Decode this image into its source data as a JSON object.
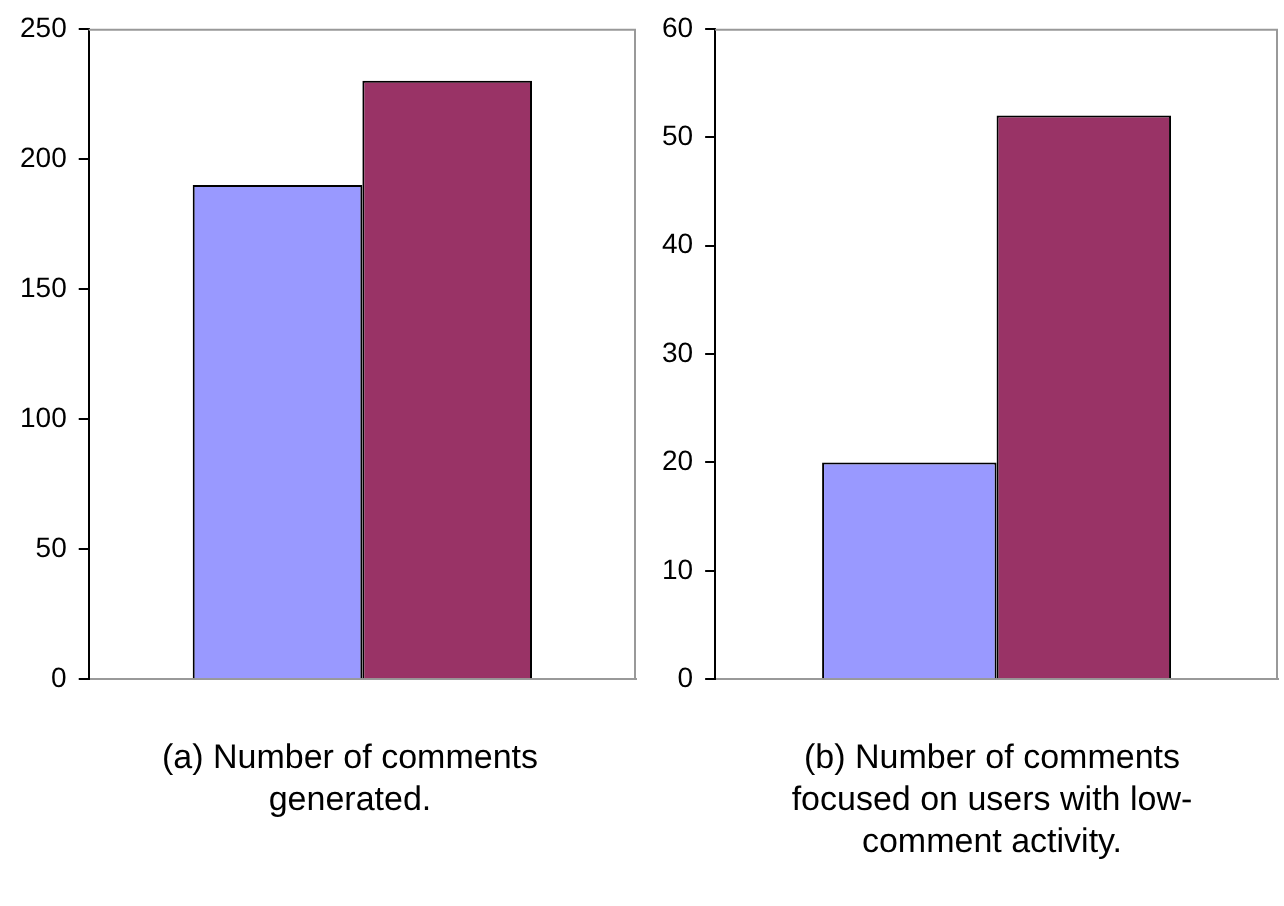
{
  "chart_data": [
    {
      "type": "bar",
      "title": "(a) Number of comments generated.",
      "categories": [
        null
      ],
      "series": [
        {
          "color": "#9999ff",
          "values": [
            190
          ]
        },
        {
          "color": "#993366",
          "values": [
            230
          ]
        }
      ],
      "ylim": [
        0,
        250
      ],
      "yticks": [
        0,
        50,
        100,
        150,
        200,
        250
      ]
    },
    {
      "type": "bar",
      "title": "(b) Number of comments focused on users with low-comment activity.",
      "categories": [
        null
      ],
      "series": [
        {
          "color": "#9999ff",
          "values": [
            20
          ]
        },
        {
          "color": "#993366",
          "values": [
            52
          ]
        }
      ],
      "ylim": [
        0,
        60
      ],
      "yticks": [
        0,
        10,
        20,
        30,
        40,
        50,
        60
      ]
    }
  ]
}
